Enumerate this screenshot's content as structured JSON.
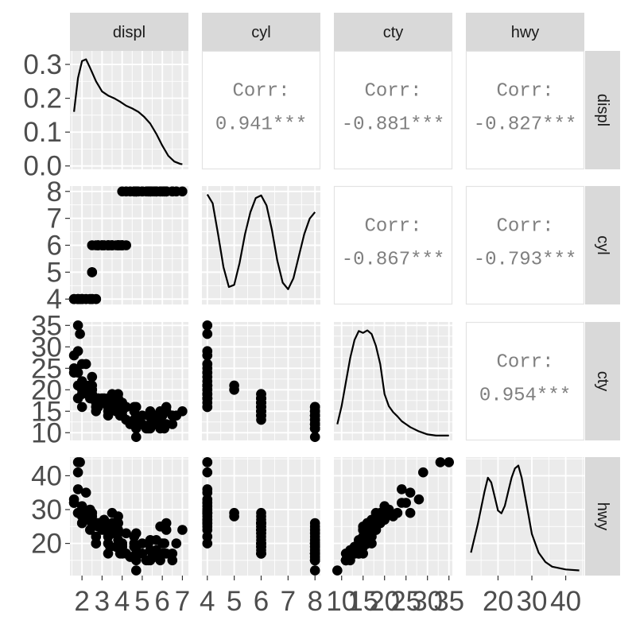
{
  "chart_data": {
    "type": "scatter",
    "variables": [
      "displ",
      "cyl",
      "cty",
      "hwy"
    ],
    "axes": {
      "displ": {
        "lim": [
          1.4,
          7.3
        ],
        "ticks": [
          2,
          3,
          4,
          5,
          6,
          7
        ],
        "labels": [
          "2",
          "3",
          "4",
          "5",
          "6",
          "7"
        ]
      },
      "cyl": {
        "lim": [
          3.8,
          8.2
        ],
        "ticks": [
          4,
          5,
          6,
          7,
          8
        ],
        "labels": [
          "4",
          "5",
          "6",
          "7",
          "8"
        ]
      },
      "cty": {
        "lim": [
          8.2,
          35.8
        ],
        "ticks": [
          10,
          15,
          20,
          25,
          30,
          35
        ],
        "labels": [
          "10",
          "15",
          "20",
          "25",
          "30",
          "35"
        ]
      },
      "hwy": {
        "lim": [
          10.5,
          45.5
        ],
        "ticks": [
          20,
          30,
          40
        ],
        "labels": [
          "20",
          "30",
          "40"
        ]
      }
    },
    "density_axis": {
      "lim": [
        -0.01,
        0.34
      ],
      "ticks": [
        0.0,
        0.1,
        0.2,
        0.3
      ],
      "labels": [
        "0.0",
        "0.1",
        "0.2",
        "0.3"
      ]
    },
    "densities": {
      "displ": [
        [
          1.6,
          0.16
        ],
        [
          1.8,
          0.26
        ],
        [
          2.0,
          0.31
        ],
        [
          2.2,
          0.315
        ],
        [
          2.4,
          0.29
        ],
        [
          2.7,
          0.25
        ],
        [
          3.0,
          0.22
        ],
        [
          3.3,
          0.208
        ],
        [
          3.6,
          0.2
        ],
        [
          3.9,
          0.19
        ],
        [
          4.2,
          0.178
        ],
        [
          4.5,
          0.17
        ],
        [
          4.8,
          0.16
        ],
        [
          5.1,
          0.145
        ],
        [
          5.4,
          0.125
        ],
        [
          5.7,
          0.095
        ],
        [
          6.0,
          0.06
        ],
        [
          6.3,
          0.03
        ],
        [
          6.6,
          0.013
        ],
        [
          6.9,
          0.006
        ],
        [
          7.0,
          0.005
        ]
      ],
      "cyl": [
        [
          4.0,
          0.24
        ],
        [
          4.2,
          0.22
        ],
        [
          4.4,
          0.15
        ],
        [
          4.6,
          0.075
        ],
        [
          4.8,
          0.03
        ],
        [
          5.0,
          0.035
        ],
        [
          5.2,
          0.085
        ],
        [
          5.4,
          0.15
        ],
        [
          5.6,
          0.2
        ],
        [
          5.8,
          0.232
        ],
        [
          6.0,
          0.238
        ],
        [
          6.2,
          0.215
        ],
        [
          6.4,
          0.16
        ],
        [
          6.6,
          0.09
        ],
        [
          6.8,
          0.04
        ],
        [
          7.0,
          0.025
        ],
        [
          7.2,
          0.05
        ],
        [
          7.4,
          0.1
        ],
        [
          7.6,
          0.15
        ],
        [
          7.8,
          0.185
        ],
        [
          8.0,
          0.2
        ]
      ],
      "cty": [
        [
          9,
          0.02
        ],
        [
          10,
          0.05
        ],
        [
          11,
          0.09
        ],
        [
          12,
          0.13
        ],
        [
          13,
          0.16
        ],
        [
          14,
          0.175
        ],
        [
          15,
          0.172
        ],
        [
          16,
          0.176
        ],
        [
          17,
          0.17
        ],
        [
          18,
          0.15
        ],
        [
          19,
          0.12
        ],
        [
          20,
          0.07
        ],
        [
          21,
          0.05
        ],
        [
          22,
          0.04
        ],
        [
          23,
          0.033
        ],
        [
          24,
          0.025
        ],
        [
          26,
          0.015
        ],
        [
          28,
          0.008
        ],
        [
          30,
          0.003
        ],
        [
          32,
          0.001
        ],
        [
          35,
          0.001
        ]
      ],
      "hwy": [
        [
          12,
          0.02
        ],
        [
          14,
          0.05
        ],
        [
          16,
          0.085
        ],
        [
          17,
          0.1
        ],
        [
          18,
          0.095
        ],
        [
          19,
          0.08
        ],
        [
          20,
          0.065
        ],
        [
          21,
          0.062
        ],
        [
          22,
          0.07
        ],
        [
          23,
          0.085
        ],
        [
          24,
          0.1
        ],
        [
          25,
          0.11
        ],
        [
          26,
          0.113
        ],
        [
          27,
          0.1
        ],
        [
          28,
          0.08
        ],
        [
          29,
          0.06
        ],
        [
          30,
          0.04
        ],
        [
          32,
          0.02
        ],
        [
          34,
          0.01
        ],
        [
          36,
          0.005
        ],
        [
          40,
          0.002
        ],
        [
          44,
          0.001
        ]
      ]
    },
    "correlations": [
      {
        "row": "displ",
        "col": "cyl",
        "label": "Corr:",
        "value": "0.941***"
      },
      {
        "row": "displ",
        "col": "cty",
        "label": "Corr:",
        "value": "-0.881***"
      },
      {
        "row": "displ",
        "col": "hwy",
        "label": "Corr:",
        "value": "-0.827***"
      },
      {
        "row": "cyl",
        "col": "cty",
        "label": "Corr:",
        "value": "-0.867***"
      },
      {
        "row": "cyl",
        "col": "hwy",
        "label": "Corr:",
        "value": "-0.793***"
      },
      {
        "row": "cty",
        "col": "hwy",
        "label": "Corr:",
        "value": "0.954***"
      }
    ],
    "observations": [
      [
        1.6,
        4,
        24,
        32
      ],
      [
        1.6,
        4,
        28,
        33
      ],
      [
        1.6,
        4,
        25,
        32
      ],
      [
        1.8,
        4,
        18,
        29
      ],
      [
        1.8,
        4,
        21,
        29
      ],
      [
        1.8,
        4,
        35,
        44
      ],
      [
        1.8,
        4,
        29,
        41
      ],
      [
        1.8,
        4,
        24,
        36
      ],
      [
        1.9,
        4,
        33,
        44
      ],
      [
        2.0,
        4,
        20,
        31
      ],
      [
        2.0,
        4,
        21,
        30
      ],
      [
        2.0,
        4,
        19,
        26
      ],
      [
        2.0,
        4,
        22,
        28
      ],
      [
        2.0,
        4,
        26,
        29
      ],
      [
        2.0,
        4,
        21,
        29
      ],
      [
        2.0,
        4,
        16,
        26
      ],
      [
        2.2,
        4,
        21,
        29
      ],
      [
        2.2,
        4,
        26,
        35
      ],
      [
        2.4,
        4,
        21,
        30
      ],
      [
        2.4,
        4,
        19,
        27
      ],
      [
        2.4,
        4,
        18,
        24
      ],
      [
        2.5,
        4,
        20,
        27
      ],
      [
        2.5,
        4,
        19,
        26
      ],
      [
        2.5,
        4,
        23,
        29
      ],
      [
        2.5,
        4,
        18,
        25
      ],
      [
        2.7,
        4,
        17,
        22
      ],
      [
        2.7,
        4,
        16,
        20
      ],
      [
        2.5,
        5,
        20,
        28
      ],
      [
        2.5,
        5,
        21,
        29
      ],
      [
        2.5,
        6,
        18,
        26
      ],
      [
        2.8,
        6,
        16,
        26
      ],
      [
        2.8,
        6,
        17,
        26
      ],
      [
        2.8,
        6,
        18,
        25
      ],
      [
        3.0,
        6,
        18,
        26
      ],
      [
        3.0,
        6,
        17,
        26
      ],
      [
        3.1,
        6,
        18,
        26
      ],
      [
        3.1,
        6,
        17,
        27
      ],
      [
        3.3,
        6,
        18,
        24
      ],
      [
        3.3,
        6,
        17,
        24
      ],
      [
        3.3,
        6,
        16,
        22
      ],
      [
        3.4,
        6,
        15,
        19
      ],
      [
        3.5,
        6,
        18,
        26
      ],
      [
        3.5,
        6,
        19,
        29
      ],
      [
        3.5,
        6,
        16,
        23
      ],
      [
        3.7,
        6,
        15,
        19
      ],
      [
        3.8,
        6,
        18,
        26
      ],
      [
        3.8,
        6,
        16,
        24
      ],
      [
        3.8,
        6,
        17,
        26
      ],
      [
        3.8,
        6,
        15,
        21
      ],
      [
        3.9,
        6,
        14,
        17
      ],
      [
        4.0,
        6,
        14,
        17
      ],
      [
        4.0,
        6,
        15,
        19
      ],
      [
        4.0,
        6,
        16,
        20
      ],
      [
        4.2,
        6,
        13,
        17
      ],
      [
        3.8,
        6,
        19,
        28
      ],
      [
        4.0,
        6,
        15,
        17
      ],
      [
        3.3,
        6,
        15,
        20
      ],
      [
        3.5,
        6,
        17,
        25
      ],
      [
        3.0,
        6,
        17,
        24
      ],
      [
        2.7,
        6,
        15,
        20
      ],
      [
        3.9,
        6,
        14,
        18
      ],
      [
        3.3,
        6,
        14,
        17
      ],
      [
        3.8,
        6,
        16,
        23
      ],
      [
        4.0,
        6,
        17,
        20
      ],
      [
        4.2,
        8,
        16,
        23
      ],
      [
        4.6,
        8,
        15,
        22
      ],
      [
        4.6,
        8,
        16,
        20
      ],
      [
        4.7,
        8,
        14,
        19
      ],
      [
        4.7,
        8,
        9,
        12
      ],
      [
        4.7,
        8,
        13,
        17
      ],
      [
        4.7,
        8,
        11,
        15
      ],
      [
        5.0,
        8,
        12,
        17
      ],
      [
        5.2,
        8,
        11,
        15
      ],
      [
        5.3,
        8,
        14,
        20
      ],
      [
        5.3,
        8,
        11,
        15
      ],
      [
        5.4,
        8,
        11,
        15
      ],
      [
        5.4,
        8,
        12,
        18
      ],
      [
        5.5,
        8,
        13,
        17
      ],
      [
        5.7,
        8,
        12,
        17
      ],
      [
        5.7,
        8,
        13,
        18
      ],
      [
        5.9,
        8,
        11,
        15
      ],
      [
        6.0,
        8,
        12,
        17
      ],
      [
        6.1,
        8,
        11,
        17
      ],
      [
        6.2,
        8,
        15,
        24
      ],
      [
        6.2,
        8,
        16,
        26
      ],
      [
        6.5,
        8,
        14,
        17
      ],
      [
        7.0,
        8,
        15,
        24
      ],
      [
        4.4,
        8,
        12,
        16
      ],
      [
        4.8,
        8,
        13,
        17
      ],
      [
        5.6,
        8,
        12,
        16
      ],
      [
        6.1,
        8,
        15,
        20
      ],
      [
        6.5,
        8,
        12,
        15
      ],
      [
        5.9,
        8,
        15,
        25
      ],
      [
        4.0,
        8,
        15,
        19
      ],
      [
        4.6,
        8,
        13,
        19
      ],
      [
        5.0,
        8,
        14,
        20
      ],
      [
        5.4,
        8,
        15,
        21
      ],
      [
        5.7,
        8,
        14,
        21
      ],
      [
        6.0,
        8,
        14,
        20
      ],
      [
        6.2,
        8,
        12,
        17
      ],
      [
        6.7,
        8,
        14,
        20
      ],
      [
        4.7,
        8,
        16,
        23
      ]
    ]
  }
}
